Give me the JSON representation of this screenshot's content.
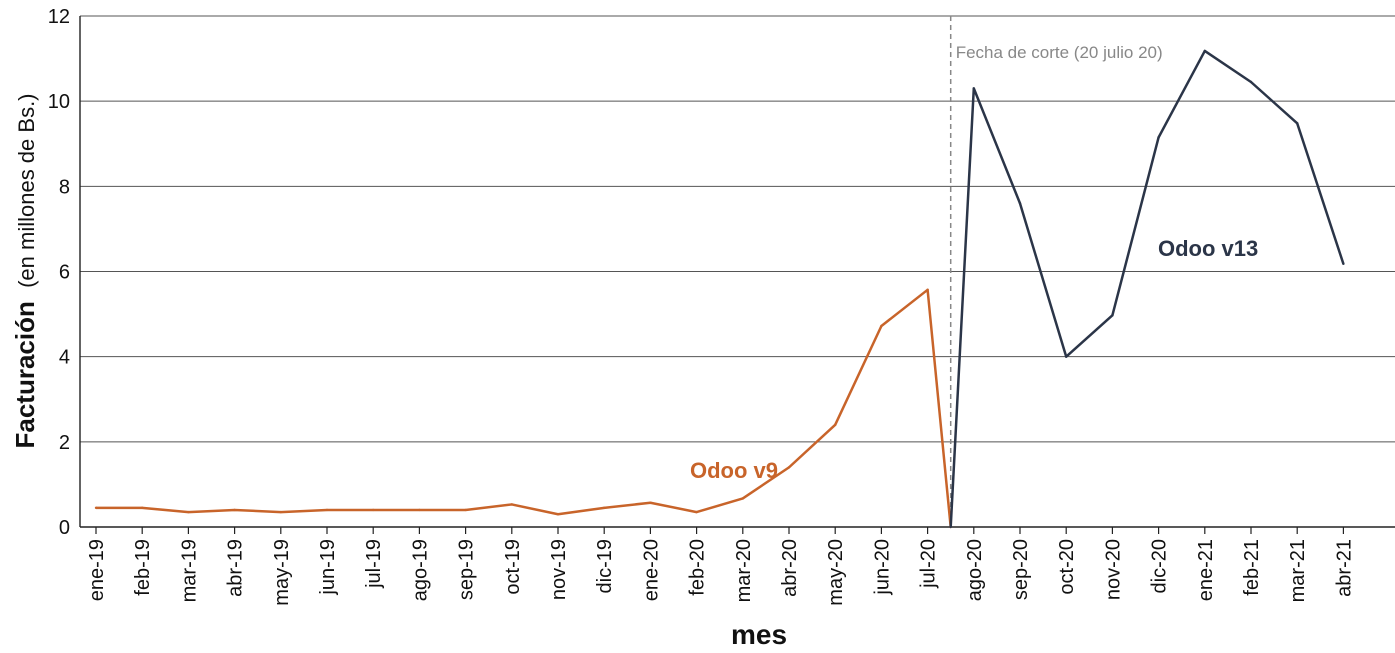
{
  "chart_data": {
    "type": "line",
    "x_label": "mes",
    "y_label_main": "Facturación",
    "y_label_sub": "(en millones de Bs.)",
    "ylim": [
      0,
      12
    ],
    "y_ticks": [
      "0",
      "2",
      "4",
      "6",
      "8",
      "10",
      "12"
    ],
    "grid": true,
    "categories": [
      "ene-19",
      "feb-19",
      "mar-19",
      "abr-19",
      "may-19",
      "jun-19",
      "jul-19",
      "ago-19",
      "sep-19",
      "oct-19",
      "nov-19",
      "dic-19",
      "ene-20",
      "feb-20",
      "mar-20",
      "abr-20",
      "may-20",
      "jun-20",
      "jul-20",
      "ago-20",
      "sep-20",
      "oct-20",
      "nov-20",
      "dic-20",
      "ene-21",
      "feb-21",
      "mar-21",
      "abr-21"
    ],
    "cutoff": {
      "label": "Fecha de corte (20 julio 20)",
      "between": [
        "jul-20",
        "ago-20"
      ]
    },
    "series": [
      {
        "name": "Odoo v9",
        "color": "#c8642a",
        "x": [
          "ene-19",
          "feb-19",
          "mar-19",
          "abr-19",
          "may-19",
          "jun-19",
          "jul-19",
          "ago-19",
          "sep-19",
          "oct-19",
          "nov-19",
          "dic-19",
          "ene-20",
          "feb-20",
          "mar-20",
          "abr-20",
          "may-20",
          "jun-20",
          "jul-20",
          "cutoff"
        ],
        "values": [
          0.45,
          0.45,
          0.35,
          0.4,
          0.35,
          0.4,
          0.4,
          0.4,
          0.4,
          0.53,
          0.3,
          0.45,
          0.57,
          0.35,
          0.67,
          1.4,
          2.4,
          4.72,
          5.57,
          0
        ]
      },
      {
        "name": "Odoo v13",
        "color": "#2b3548",
        "x": [
          "cutoff",
          "ago-20",
          "sep-20",
          "oct-20",
          "nov-20",
          "dic-20",
          "ene-21",
          "feb-21",
          "mar-21",
          "abr-21"
        ],
        "values": [
          0,
          10.3,
          7.6,
          4.0,
          4.97,
          9.15,
          11.18,
          10.45,
          9.48,
          6.18
        ]
      }
    ]
  }
}
